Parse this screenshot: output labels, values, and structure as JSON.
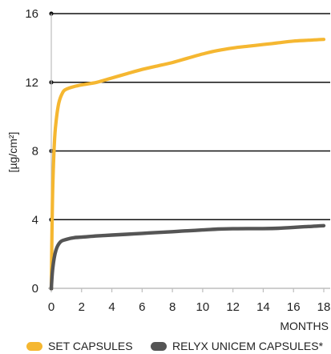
{
  "chart_data": {
    "type": "line",
    "xlabel": "MONTHS",
    "ylabel": "[µg/cm²]",
    "xlim": [
      0,
      18
    ],
    "ylim": [
      0,
      16
    ],
    "x_ticks": [
      0,
      2,
      4,
      6,
      8,
      10,
      12,
      14,
      16,
      18
    ],
    "y_ticks": [
      0,
      4,
      8,
      12,
      16
    ],
    "grid": "horizontal",
    "legend_position": "bottom",
    "series": [
      {
        "name": "SET CAPSULES",
        "color": "#F5B731",
        "x": [
          0,
          0.05,
          0.1,
          0.2,
          0.3,
          0.5,
          0.75,
          1.0,
          1.5,
          2,
          3,
          4,
          5,
          6,
          7,
          8,
          9,
          10,
          11,
          12,
          13,
          14,
          15,
          16,
          17,
          18
        ],
        "y": [
          0,
          3.5,
          6.0,
          8.4,
          9.6,
          10.8,
          11.4,
          11.6,
          11.75,
          11.85,
          12.0,
          12.25,
          12.5,
          12.75,
          12.95,
          13.15,
          13.4,
          13.65,
          13.85,
          14.0,
          14.1,
          14.2,
          14.3,
          14.4,
          14.45,
          14.5
        ]
      },
      {
        "name": "RELYX UNICEM CAPSULES*",
        "color": "#555555",
        "x": [
          0,
          0.1,
          0.3,
          0.6,
          1,
          1.5,
          2,
          3,
          4,
          5,
          6,
          7,
          8,
          9,
          10,
          11,
          12,
          13,
          14,
          15,
          16,
          17,
          18
        ],
        "y": [
          0,
          1.2,
          2.2,
          2.7,
          2.85,
          2.95,
          2.98,
          3.05,
          3.1,
          3.15,
          3.2,
          3.25,
          3.3,
          3.35,
          3.4,
          3.45,
          3.47,
          3.48,
          3.48,
          3.5,
          3.55,
          3.6,
          3.65
        ]
      }
    ]
  }
}
